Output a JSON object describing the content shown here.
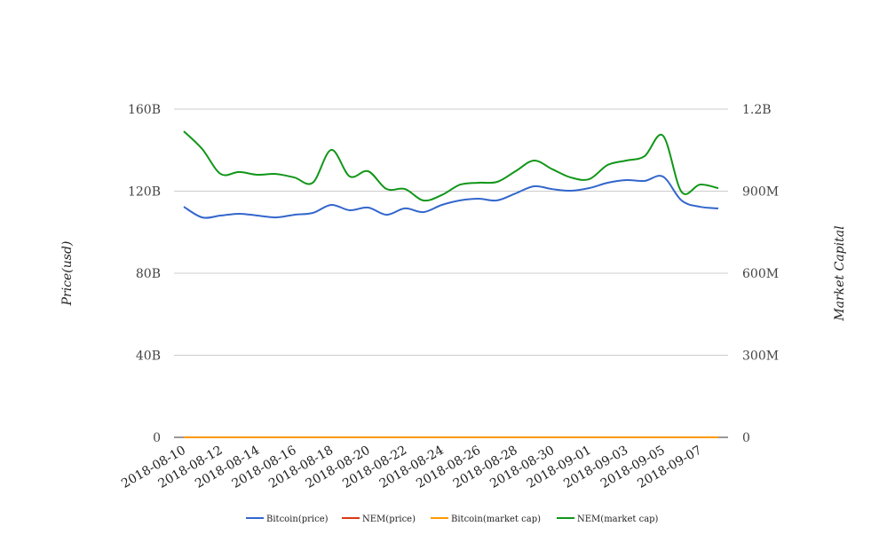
{
  "chart_data": {
    "type": "line",
    "title": "",
    "xlabel": "",
    "ylabel": "Price(usd)",
    "y2label": "Market Capital",
    "ylim": [
      0,
      160
    ],
    "y2lim": [
      0,
      1200
    ],
    "y_ticks": [
      {
        "v": 0,
        "label": "0"
      },
      {
        "v": 40,
        "label": "40B"
      },
      {
        "v": 80,
        "label": "80B"
      },
      {
        "v": 120,
        "label": "120B"
      },
      {
        "v": 160,
        "label": "160B"
      }
    ],
    "y2_ticks": [
      {
        "v": 0,
        "label": "0"
      },
      {
        "v": 300,
        "label": "300M"
      },
      {
        "v": 600,
        "label": "600M"
      },
      {
        "v": 900,
        "label": "900M"
      },
      {
        "v": 1200,
        "label": "1.2B"
      }
    ],
    "x": [
      "2018-08-10",
      "2018-08-11",
      "2018-08-12",
      "2018-08-13",
      "2018-08-14",
      "2018-08-15",
      "2018-08-16",
      "2018-08-17",
      "2018-08-18",
      "2018-08-19",
      "2018-08-20",
      "2018-08-21",
      "2018-08-22",
      "2018-08-23",
      "2018-08-24",
      "2018-08-25",
      "2018-08-26",
      "2018-08-27",
      "2018-08-28",
      "2018-08-29",
      "2018-08-30",
      "2018-08-31",
      "2018-09-01",
      "2018-09-02",
      "2018-09-03",
      "2018-09-04",
      "2018-09-05",
      "2018-09-06",
      "2018-09-07",
      "2018-09-08"
    ],
    "x_tick_labels": [
      "2018-08-10",
      "2018-08-12",
      "2018-08-14",
      "2018-08-16",
      "2018-08-18",
      "2018-08-20",
      "2018-08-22",
      "2018-08-24",
      "2018-08-26",
      "2018-08-28",
      "2018-08-30",
      "2018-09-01",
      "2018-09-03",
      "2018-09-05",
      "2018-09-07"
    ],
    "grid": true,
    "legend_position": "bottom",
    "series": [
      {
        "name": "Bitcoin(price)",
        "color": "#3366cc",
        "axis": "left",
        "values": [
          112.4,
          107.2,
          108.1,
          109,
          108.1,
          107.2,
          108.5,
          109.4,
          113.3,
          110.7,
          112,
          108.5,
          111.6,
          109.8,
          113.3,
          115.5,
          116.3,
          115.5,
          118.9,
          122.4,
          121,
          120.2,
          121.5,
          124.1,
          125.4,
          125,
          127.1,
          115.5,
          112.4,
          111.6
        ]
      },
      {
        "name": "NEM(price)",
        "color": "#dc3912",
        "axis": "left",
        "values": [
          0,
          0,
          0,
          0,
          0,
          0,
          0,
          0,
          0,
          0,
          0,
          0,
          0,
          0,
          0,
          0,
          0,
          0,
          0,
          0,
          0,
          0,
          0,
          0,
          0,
          0,
          0,
          0,
          0,
          0
        ]
      },
      {
        "name": "Bitcoin(market cap)",
        "color": "#ff9900",
        "axis": "left",
        "values": [
          0,
          0,
          0,
          0,
          0,
          0,
          0,
          0,
          0,
          0,
          0,
          0,
          0,
          0,
          0,
          0,
          0,
          0,
          0,
          0,
          0,
          0,
          0,
          0,
          0,
          0,
          0,
          0,
          0,
          0
        ]
      },
      {
        "name": "NEM(market cap)",
        "color": "#109618",
        "axis": "right",
        "values": [
          1119,
          1054,
          963,
          970,
          960,
          963,
          950,
          931,
          1051,
          954,
          973,
          908,
          908,
          866,
          886,
          924,
          931,
          934,
          973,
          1012,
          980,
          950,
          944,
          996,
          1012,
          1028,
          1103,
          898,
          924,
          911
        ]
      }
    ]
  }
}
